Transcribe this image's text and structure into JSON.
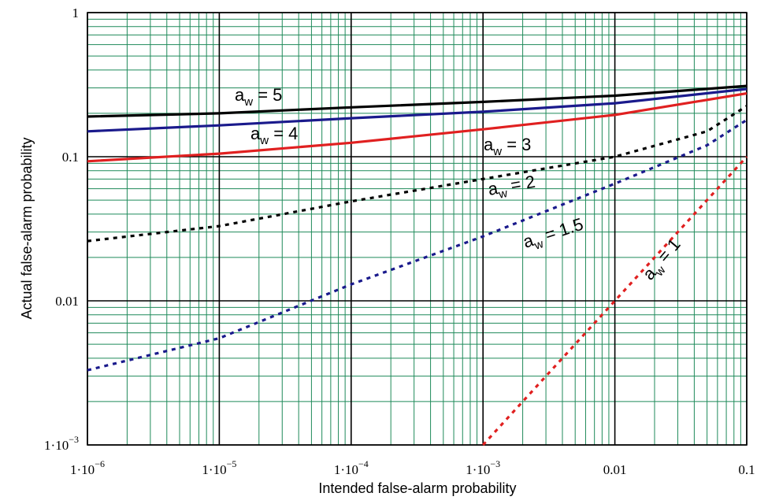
{
  "chart_data": {
    "type": "line",
    "title": "",
    "xlabel": "Intended false-alarm probability",
    "ylabel": "Actual false-alarm probability",
    "x_scale": "log",
    "y_scale": "log",
    "xlim": [
      1e-06,
      0.1
    ],
    "ylim": [
      0.001,
      1
    ],
    "grid": true,
    "x_ticks": [
      {
        "value": 1e-06,
        "mant": "1·10",
        "exp": "−6"
      },
      {
        "value": 1e-05,
        "mant": "1·10",
        "exp": "−5"
      },
      {
        "value": 0.0001,
        "mant": "1·10",
        "exp": "−4"
      },
      {
        "value": 0.001,
        "mant": "1·10",
        "exp": "−3"
      },
      {
        "value": 0.01,
        "mant": "0.01",
        "exp": ""
      },
      {
        "value": 0.1,
        "mant": "0.1",
        "exp": ""
      }
    ],
    "y_ticks": [
      {
        "value": 1,
        "mant": "1",
        "exp": ""
      },
      {
        "value": 0.1,
        "mant": "0.1",
        "exp": ""
      },
      {
        "value": 0.01,
        "mant": "0.01",
        "exp": ""
      },
      {
        "value": 0.001,
        "mant": "1·10",
        "exp": "−3"
      }
    ],
    "series": [
      {
        "label_main": "a",
        "label_sub": "w",
        "label_val": " = 5",
        "color": "#000000",
        "dash": "solid",
        "x": [
          1e-06,
          1e-05,
          0.0001,
          0.001,
          0.01,
          0.1
        ],
        "y": [
          0.19,
          0.2,
          0.22,
          0.24,
          0.265,
          0.31
        ]
      },
      {
        "label_main": "a",
        "label_sub": "w",
        "label_val": " = 4",
        "color": "#1a1a8c",
        "dash": "solid",
        "x": [
          1e-06,
          1e-05,
          0.0001,
          0.001,
          0.01,
          0.1
        ],
        "y": [
          0.15,
          0.165,
          0.185,
          0.205,
          0.235,
          0.295
        ]
      },
      {
        "label_main": "a",
        "label_sub": "w",
        "label_val": " = 3",
        "color": "#e02020",
        "dash": "solid",
        "x": [
          1e-06,
          1e-05,
          0.0001,
          0.001,
          0.01,
          0.1
        ],
        "y": [
          0.093,
          0.105,
          0.125,
          0.155,
          0.195,
          0.275
        ]
      },
      {
        "label_main": "a",
        "label_sub": "w",
        "label_val": " = 2",
        "color": "#000000",
        "dash": "dotted",
        "x": [
          1e-06,
          1e-05,
          0.0001,
          0.001,
          0.01,
          0.05,
          0.1
        ],
        "y": [
          0.026,
          0.033,
          0.049,
          0.07,
          0.1,
          0.15,
          0.225
        ]
      },
      {
        "label_main": "a",
        "label_sub": "w",
        "label_val": " = 1.5",
        "color": "#1a1a8c",
        "dash": "dotted",
        "x": [
          1e-06,
          1e-05,
          0.0001,
          0.001,
          0.01,
          0.05,
          0.1
        ],
        "y": [
          0.0033,
          0.0055,
          0.013,
          0.028,
          0.065,
          0.12,
          0.18
        ]
      },
      {
        "label_main": "a",
        "label_sub": "w",
        "label_val": " = 1",
        "color": "#e02020",
        "dash": "dotted",
        "x": [
          0.001,
          0.01,
          0.1
        ],
        "y": [
          0.001,
          0.01,
          0.1
        ]
      }
    ]
  }
}
